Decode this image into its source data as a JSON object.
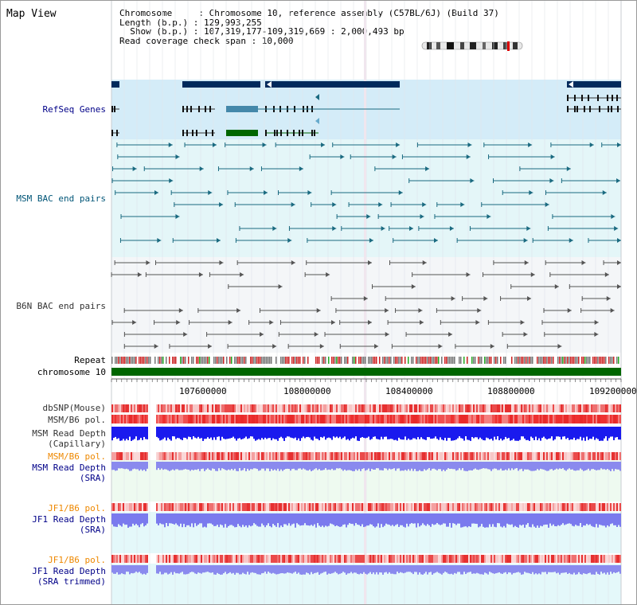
{
  "app": {
    "title": "Map View"
  },
  "header": {
    "line1": "Chromosome     : Chromosome 10, reference assembly (C57BL/6J) (Build 37)",
    "line2": "Length (b.p.) : 129,993,255",
    "line3": "  Show (b.p.) : 107,319,177-109,319,669 : 2,000,493 bp",
    "line4": "Read coverage check span : 10,000"
  },
  "tracks": {
    "refseq": "RefSeq Genes",
    "msm_bac": "MSM BAC end pairs",
    "b6n_bac": "B6N BAC end pairs",
    "repeat": "Repeat",
    "chromosome": "chromosome 10",
    "dbsnp": "dbSNP(Mouse)",
    "msm_pol1": "MSM/B6 pol.",
    "msm_depth_cap": "MSM Read Depth",
    "msm_depth_cap_sub": "(Capillary)",
    "msm_pol2": "MSM/B6 pol.",
    "msm_depth_sra": "MSM Read Depth",
    "msm_depth_sra_sub": "(SRA)",
    "jf1_pol1": "JF1/B6 pol.",
    "jf1_depth_sra": "JF1 Read Depth",
    "jf1_depth_sra_sub": "(SRA)",
    "jf1_pol2": "JF1/B6 pol.",
    "jf1_depth_trim": "JF1 Read Depth",
    "jf1_depth_trim_sub": "(SRA trimmed)"
  },
  "axis": {
    "ticks": [
      "107600000",
      "108000000",
      "108400000",
      "108800000",
      "109200000"
    ]
  },
  "colors": {
    "refseq_bg": "#d4ecf8",
    "msm_bg": "#e4f6f8",
    "b6n_bg": "#f4f6f8",
    "gene_dark": "#002a5c",
    "msm_line": "#1a6a80",
    "b6n_line": "#555555",
    "chrom": "#006600",
    "refseq_label": "#000088",
    "msm_label": "#005577",
    "b6n_label": "#333333",
    "orange_label": "#ee8800",
    "blue_label": "#000088"
  }
}
